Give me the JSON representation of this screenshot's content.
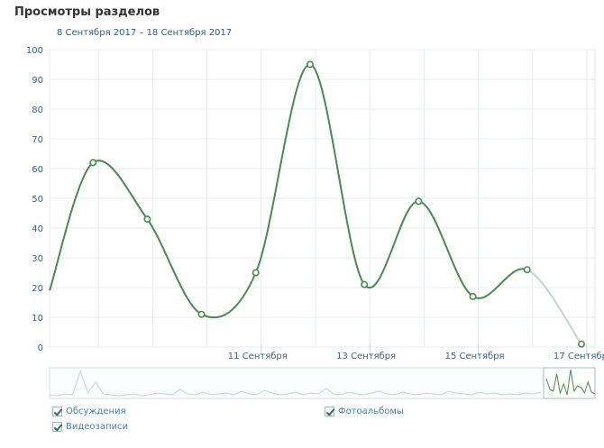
{
  "header": {
    "title": "Просмотры разделов",
    "date_range": "8 Сентября 2017 – 18 Сентября 2017"
  },
  "colors": {
    "series": "#4a8a4f",
    "series_faded": "#bfd9c1",
    "grid": "#e6ebf0",
    "axis_text": "#3b5f86"
  },
  "legend": [
    {
      "label": "Обсуждения",
      "checked": true
    },
    {
      "label": "Фотоальбомы",
      "checked": true
    },
    {
      "label": "Видеозаписи",
      "checked": true
    }
  ],
  "chart_data": {
    "type": "line",
    "title": "Просмотры разделов",
    "subtitle": "8 Сентября 2017 – 18 Сентября 2017",
    "ylim": [
      0,
      100
    ],
    "y_ticks": [
      0,
      10,
      20,
      30,
      40,
      50,
      60,
      70,
      80,
      90,
      100
    ],
    "x_tick_labels": [
      "11 Сентября",
      "13 Сентября",
      "15 Сентября",
      "17 Сентября"
    ],
    "x_tick_days": [
      11,
      13,
      15,
      17
    ],
    "xlim": [
      7.95,
      18.0
    ],
    "grid": true,
    "series": [
      {
        "points": [
          {
            "x": 7.95,
            "y": 19
          },
          {
            "x": 8.75,
            "y": 62
          },
          {
            "x": 9.75,
            "y": 43
          },
          {
            "x": 10.75,
            "y": 11
          },
          {
            "x": 11.75,
            "y": 25
          },
          {
            "x": 12.75,
            "y": 95
          },
          {
            "x": 13.75,
            "y": 21
          },
          {
            "x": 14.75,
            "y": 49
          },
          {
            "x": 15.75,
            "y": 17
          },
          {
            "x": 16.75,
            "y": 26
          },
          {
            "x": 17.75,
            "y": 1
          }
        ],
        "faded_from_index": 9
      }
    ]
  }
}
